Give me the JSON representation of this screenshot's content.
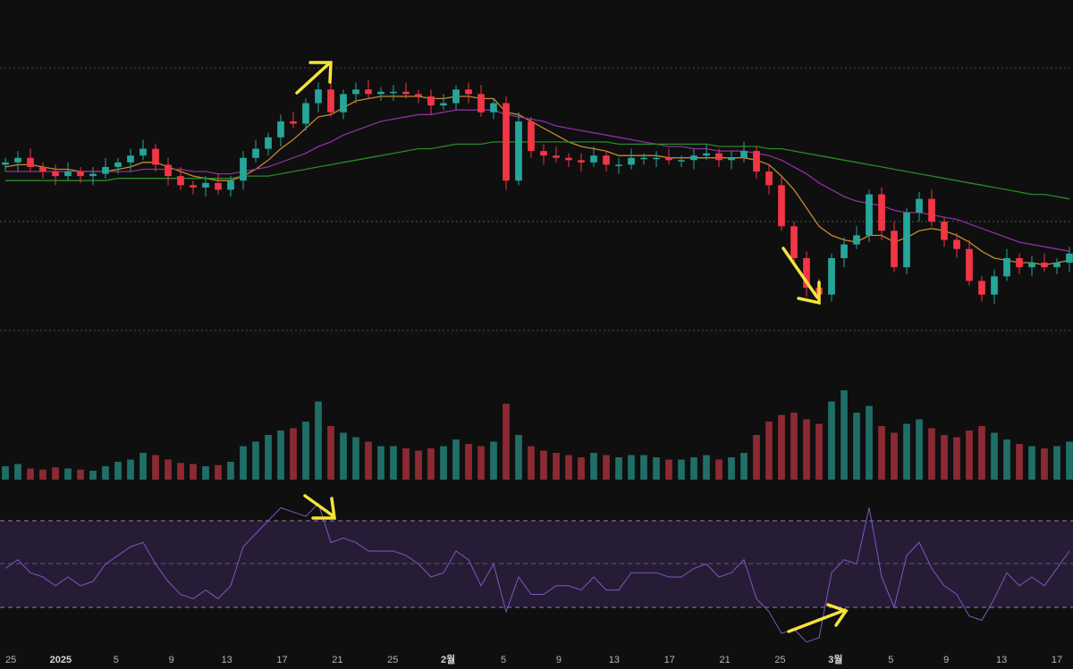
{
  "colors": {
    "background": "#0f0f0f",
    "candle_up": "#26a69a",
    "candle_down": "#f23645",
    "ma_fast": "#c8892e",
    "ma_mid": "#8e2fa0",
    "ma_slow": "#2a8a2a",
    "volume_up": "#1f6f68",
    "volume_down": "#8c2a33",
    "rsi_line": "#7e57c2",
    "rsi_band": "#2a1f3d",
    "rsi_guides": "#8a8a9a",
    "annotation": "#f5e33b",
    "reference_line": "#5a5a5a",
    "reference_line_green": "#2e6b4a"
  },
  "x_axis": {
    "tick_labels": [
      "25",
      "2025",
      "5",
      "9",
      "13",
      "17",
      "21",
      "25",
      "2월",
      "5",
      "9",
      "13",
      "17",
      "21",
      "25",
      "3월",
      "5",
      "9",
      "13",
      "17"
    ]
  },
  "chart_data": [
    {
      "type": "candlestick",
      "panel": "price",
      "x": [
        "12-25",
        "12-26",
        "12-27",
        "12-28",
        "12-29",
        "12-30",
        "12-31",
        "01-01",
        "01-02",
        "01-03",
        "01-04",
        "01-05",
        "01-06",
        "01-07",
        "01-08",
        "01-09",
        "01-10",
        "01-11",
        "01-12",
        "01-13",
        "01-14",
        "01-15",
        "01-16",
        "01-17",
        "01-18",
        "01-19",
        "01-20",
        "01-21",
        "01-22",
        "01-23",
        "01-24",
        "01-25",
        "01-26",
        "01-27",
        "01-28",
        "01-29",
        "01-30",
        "01-31",
        "02-01",
        "02-02",
        "02-03",
        "02-04",
        "02-05",
        "02-06",
        "02-07",
        "02-08",
        "02-09",
        "02-10",
        "02-11",
        "02-12",
        "02-13",
        "02-14",
        "02-15",
        "02-16",
        "02-17",
        "02-18",
        "02-19",
        "02-20",
        "02-21",
        "02-22",
        "02-23",
        "02-24",
        "02-25",
        "02-26",
        "02-27",
        "02-28",
        "03-01",
        "03-02",
        "03-03",
        "03-04",
        "03-05",
        "03-06",
        "03-07",
        "03-08",
        "03-09",
        "03-10",
        "03-11",
        "03-12",
        "03-13",
        "03-14",
        "03-15",
        "03-16",
        "03-17",
        "03-18",
        "03-19",
        "03-20"
      ],
      "close": [
        70,
        72,
        68,
        66,
        64,
        66,
        64,
        65,
        68,
        70,
        73,
        76,
        69,
        64,
        60,
        59,
        61,
        58,
        62,
        72,
        76,
        81,
        88,
        87,
        96,
        102,
        92,
        100,
        102,
        100,
        101,
        101,
        100,
        99,
        95,
        96,
        102,
        100,
        92,
        96,
        62,
        88,
        75,
        73,
        72,
        71,
        70,
        73,
        69,
        69,
        72,
        72,
        72,
        71,
        71,
        73,
        74,
        71,
        72,
        75,
        66,
        60,
        42,
        28,
        15,
        12,
        28,
        34,
        38,
        56,
        40,
        24,
        48,
        54,
        44,
        36,
        32,
        18,
        12,
        20,
        28,
        24,
        26,
        24,
        26,
        30
      ],
      "series": [
        {
          "name": "",
          "kind": "ma_fast",
          "values": [
            68,
            69,
            69,
            68,
            67,
            67,
            66,
            66,
            66,
            67,
            68,
            70,
            70,
            68,
            66,
            64,
            63,
            62,
            62,
            64,
            67,
            71,
            76,
            80,
            85,
            90,
            91,
            94,
            97,
            98,
            99,
            99,
            99,
            99,
            98,
            98,
            99,
            99,
            98,
            98,
            92,
            91,
            88,
            85,
            82,
            79,
            77,
            76,
            75,
            73,
            73,
            73,
            73,
            72,
            72,
            72,
            72,
            72,
            72,
            72,
            71,
            69,
            64,
            58,
            50,
            42,
            38,
            36,
            35,
            38,
            38,
            35,
            37,
            40,
            41,
            40,
            38,
            35,
            31,
            28,
            27,
            26,
            26,
            25,
            26,
            27
          ]
        },
        {
          "name": "",
          "kind": "ma_mid",
          "values": [
            66,
            66,
            66,
            66,
            66,
            66,
            66,
            66,
            66,
            66,
            66,
            67,
            67,
            67,
            67,
            66,
            66,
            65,
            65,
            66,
            67,
            68,
            70,
            72,
            74,
            77,
            79,
            82,
            84,
            86,
            88,
            89,
            90,
            91,
            91,
            92,
            93,
            93,
            93,
            93,
            91,
            90,
            89,
            88,
            86,
            85,
            84,
            83,
            82,
            81,
            80,
            79,
            78,
            77,
            77,
            76,
            76,
            75,
            75,
            75,
            74,
            73,
            71,
            68,
            65,
            61,
            58,
            55,
            53,
            52,
            51,
            49,
            48,
            48,
            47,
            46,
            45,
            43,
            41,
            39,
            37,
            35,
            34,
            33,
            32,
            31
          ]
        },
        {
          "name": "",
          "kind": "ma_slow",
          "values": [
            62,
            62,
            62,
            62,
            62,
            62,
            62,
            62,
            62,
            63,
            63,
            63,
            63,
            63,
            63,
            63,
            63,
            63,
            63,
            64,
            64,
            64,
            65,
            66,
            67,
            68,
            69,
            70,
            71,
            72,
            73,
            74,
            75,
            76,
            76,
            77,
            78,
            78,
            78,
            79,
            79,
            79,
            79,
            79,
            79,
            79,
            79,
            79,
            79,
            78,
            78,
            78,
            78,
            78,
            78,
            78,
            78,
            77,
            77,
            77,
            77,
            76,
            76,
            75,
            74,
            73,
            72,
            71,
            70,
            69,
            68,
            67,
            66,
            65,
            64,
            63,
            62,
            61,
            60,
            59,
            58,
            57,
            56,
            56,
            55,
            54
          ]
        }
      ]
    },
    {
      "type": "bar",
      "panel": "volume",
      "values": [
        12,
        14,
        10,
        9,
        11,
        10,
        9,
        8,
        12,
        16,
        18,
        24,
        22,
        18,
        15,
        14,
        12,
        13,
        16,
        30,
        34,
        40,
        44,
        46,
        52,
        70,
        48,
        42,
        38,
        34,
        30,
        30,
        28,
        26,
        28,
        30,
        36,
        32,
        30,
        34,
        68,
        40,
        30,
        26,
        24,
        22,
        20,
        24,
        22,
        20,
        22,
        22,
        20,
        18,
        18,
        20,
        22,
        18,
        20,
        24,
        40,
        52,
        58,
        60,
        54,
        50,
        70,
        80,
        60,
        66,
        48,
        42,
        50,
        54,
        46,
        40,
        38,
        44,
        48,
        42,
        36,
        32,
        30,
        28,
        30,
        34
      ]
    },
    {
      "type": "line",
      "panel": "rsi",
      "name": "",
      "values": [
        48,
        52,
        46,
        44,
        40,
        44,
        40,
        42,
        50,
        54,
        58,
        60,
        50,
        42,
        36,
        34,
        38,
        34,
        40,
        58,
        64,
        70,
        76,
        74,
        72,
        78,
        60,
        62,
        60,
        56,
        56,
        56,
        54,
        50,
        44,
        46,
        56,
        52,
        40,
        50,
        28,
        44,
        36,
        36,
        40,
        40,
        38,
        44,
        38,
        38,
        46,
        46,
        46,
        44,
        44,
        48,
        50,
        44,
        46,
        52,
        34,
        28,
        18,
        20,
        14,
        16,
        46,
        52,
        50,
        76,
        44,
        30,
        54,
        60,
        48,
        40,
        36,
        26,
        24,
        34,
        46,
        40,
        44,
        40,
        48,
        56
      ],
      "ylim": [
        0,
        100
      ],
      "band": [
        30,
        70
      ]
    }
  ]
}
